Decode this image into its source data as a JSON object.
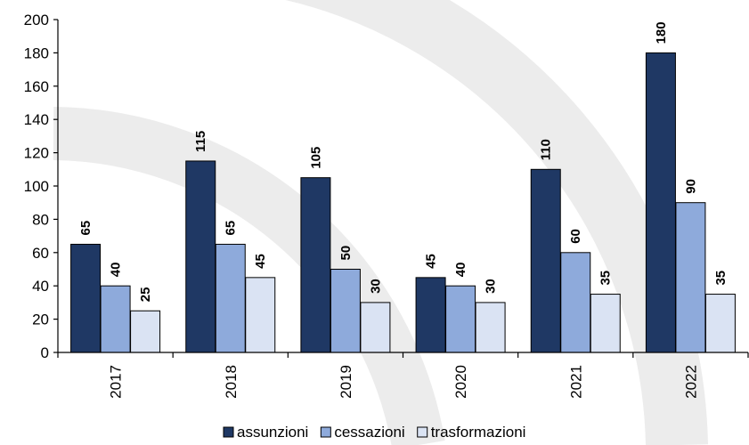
{
  "chart_data": {
    "type": "bar",
    "title": "",
    "xlabel": "",
    "ylabel": "",
    "categories": [
      "2017",
      "2018",
      "2019",
      "2020",
      "2021",
      "2022"
    ],
    "series": [
      {
        "name": "assunzioni",
        "values": [
          65,
          115,
          105,
          45,
          110,
          180
        ],
        "color": "#1f3864"
      },
      {
        "name": "cessazioni",
        "values": [
          40,
          65,
          50,
          40,
          60,
          90
        ],
        "color": "#8eaadb"
      },
      {
        "name": "trasformazioni",
        "values": [
          25,
          45,
          30,
          30,
          35,
          35
        ],
        "color": "#dae3f3"
      }
    ],
    "ylim": [
      0,
      200
    ],
    "yticks": [
      "0",
      "20",
      "40",
      "60",
      "80",
      "100",
      "120",
      "140",
      "160",
      "180",
      "200"
    ],
    "grid": false,
    "legend_position": "bottom",
    "data_labels": true,
    "category_label_orientation": "vertical",
    "background": "watermark-arcs"
  }
}
